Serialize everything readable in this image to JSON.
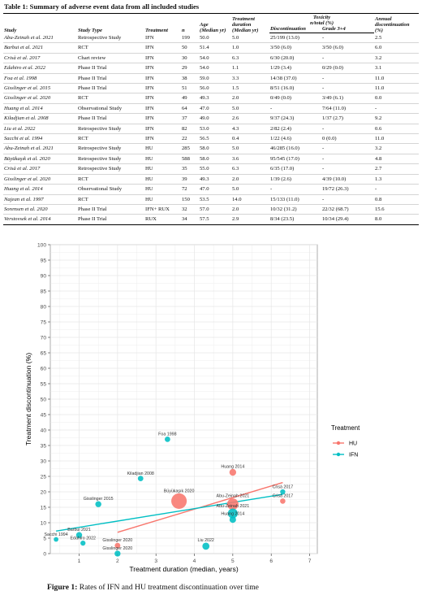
{
  "table": {
    "caption_bold": "Table 1:",
    "caption": " Summary of adverse event data from all included studies",
    "headers": {
      "study": "Study",
      "study_type": "Study Type",
      "treatment": "Treatment",
      "n": "n",
      "age": [
        "Age",
        "(Median yr)"
      ],
      "duration": [
        "Treatment",
        "duration",
        "(Median yr)"
      ],
      "toxicity": [
        "Toxicity",
        "n/total (%)"
      ],
      "discontinuation": "Discontinuation",
      "grade": "Grade 3+4",
      "annual": [
        "Annual",
        "discontinuation",
        "(%)"
      ]
    },
    "rows": [
      [
        "Abu-Zeinah et al. 2021",
        "Retrospective Study",
        "IFN",
        "199",
        "50.0",
        "5.0",
        "25/199 (13.0)",
        "-",
        "2.5"
      ],
      [
        "Barbui et al. 2021",
        "RCT",
        "IFN",
        "50",
        "51.4",
        "1.0",
        "3/50 (6.0)",
        "3/50 (6.0)",
        "6.0"
      ],
      [
        "Crisà et al. 2017",
        "Chart review",
        "IFN",
        "30",
        "54.0",
        "6.3",
        "6/30 (20.0)",
        "-",
        "3.2"
      ],
      [
        "Edahiro et al.  2022",
        "Phase II Trial",
        "IFN",
        "29",
        "54.0",
        "1.1",
        "1/29 (3.4)",
        "0/29 (0.0)",
        "3.1"
      ],
      [
        "Foa et al. 1998",
        "Phase II Trial",
        "IFN",
        "38",
        "59.0",
        "3.3",
        "14/38 (37.0)",
        "-",
        "11.0"
      ],
      [
        "Gisslinger et al. 2015",
        "Phase II Trial",
        "IFN",
        "51",
        "56.0",
        "1.5",
        "8/51 (16.0)",
        "-",
        "11.0"
      ],
      [
        "Gisslinger et al. 2020",
        "RCT",
        "IFN",
        "49",
        "49.3",
        "2.0",
        "0/49 (0.0)",
        "3/49 (6.1)",
        "0.0"
      ],
      [
        "Huang et al. 2014",
        "Observational Study",
        "IFN",
        "64",
        "47.0",
        "5.0",
        "-",
        "7/64 (11.0)",
        "-"
      ],
      [
        "Kiladjian et al. 2008",
        "Phase II Trial",
        "IFN",
        "37",
        "49.0",
        "2.6",
        "9/37 (24.3)",
        "1/37 (2.7)",
        "9.2"
      ],
      [
        "Liu et al. 2022",
        "Retrospective Study",
        "IFN",
        "82",
        "53.0",
        "4.3",
        "2/82 (2.4)",
        "-",
        "0.6"
      ],
      [
        "Sacchi et al. 1994",
        "RCT",
        "IFN",
        "22",
        "56.5",
        "0.4",
        "1/22 (4.6)",
        "0 (0.0)",
        "11.0"
      ],
      [
        "Abu-Zeinah et al. 2021",
        "Retrospective Study",
        "HU",
        "285",
        "58.0",
        "5.0",
        "46/285 (16.0)",
        "-",
        "3.2"
      ],
      [
        "Büyükaşık et al. 2020",
        "Retrospective Study",
        "HU",
        "588",
        "58.0",
        "3.6",
        "95/545 (17.0)",
        "-",
        "4.8"
      ],
      [
        "Crisà et al. 2017",
        "Retrospective Study",
        "HU",
        "35",
        "55.0",
        "6.3",
        "6/35 (17.0)",
        "-",
        "2.7"
      ],
      [
        "Gisslinger et al. 2020",
        "RCT",
        "HU",
        "39",
        "49.3",
        "2.0",
        "1/39 (2.6)",
        "4/39 (10.0)",
        "1.3"
      ],
      [
        "Huang et al. 2014",
        "Observational Study",
        "HU",
        "72",
        "47.0",
        "5.0",
        "-",
        "19/72 (26.3)",
        "-"
      ],
      [
        "Najean et al. 1997",
        "RCT",
        "HU",
        "150",
        "53.5",
        "14.0",
        "15/133 (11.0)",
        "-",
        "0.8"
      ],
      [
        "Sorensen et al. 2020",
        "Phase II Trial",
        "IFN+ RUX",
        "32",
        "57.0",
        "2.0",
        "10/32 (31.2)",
        "22/32 (68.7)",
        "15.6"
      ],
      [
        "Verstovsek et al. 2014",
        "Phase II Trial",
        "RUX",
        "34",
        "57.5",
        "2.9",
        "8/34 (23.5)",
        "10/34 (29.4)",
        "8.0"
      ]
    ]
  },
  "chart_data": {
    "type": "scatter",
    "xlabel": "Treatment duration (median, years)",
    "ylabel": "Treatment discontinuation (%)",
    "xlim": [
      0,
      7
    ],
    "ylim": [
      0,
      100
    ],
    "xticks": [
      "0",
      "1",
      "2",
      "3",
      "4",
      "5",
      "6",
      "7"
    ],
    "yticks": [
      "0",
      "5",
      "10",
      "15",
      "20",
      "25",
      "30",
      "35",
      "40",
      "45",
      "50",
      "55",
      "60",
      "65",
      "70",
      "75",
      "80",
      "85",
      "90",
      "95",
      "100"
    ],
    "grid": true,
    "legend": {
      "title": "Treatment",
      "position": "right",
      "entries": [
        "HU",
        "IFN"
      ]
    },
    "colors": {
      "HU": "#F8766D",
      "IFN": "#00BFC4"
    },
    "series": [
      {
        "name": "HU",
        "points": [
          {
            "label": "Büyükaşık 2020",
            "x": 3.6,
            "y": 17.0,
            "n": 588
          },
          {
            "label": "Abu-Zeinah 2021",
            "x": 5.0,
            "y": 16.0,
            "n": 285
          },
          {
            "label": "Crisà 2017",
            "x": 6.3,
            "y": 17.0,
            "n": 35
          },
          {
            "label": "Gisslinger 2020",
            "x": 2.0,
            "y": 2.6,
            "n": 39
          },
          {
            "label": "Huang 2014",
            "x": 5.0,
            "y": 26.3,
            "n": 72
          }
        ],
        "fit": [
          [
            2.0,
            6.9
          ],
          [
            6.3,
            23.0
          ]
        ]
      },
      {
        "name": "IFN",
        "points": [
          {
            "label": "Abu-Zeinah 2021",
            "x": 5.0,
            "y": 13.0,
            "n": 199
          },
          {
            "label": "Barbui 2021",
            "x": 1.0,
            "y": 6.0,
            "n": 50
          },
          {
            "label": "Crisà 2017",
            "x": 6.3,
            "y": 20.0,
            "n": 30
          },
          {
            "label": "Edahiro 2022",
            "x": 1.1,
            "y": 3.4,
            "n": 29
          },
          {
            "label": "Foa 1998",
            "x": 3.3,
            "y": 37.0,
            "n": 38
          },
          {
            "label": "Gisslinger 2015",
            "x": 1.5,
            "y": 16.0,
            "n": 51
          },
          {
            "label": "Gisslinger 2020",
            "x": 2.0,
            "y": 0.0,
            "n": 49
          },
          {
            "label": "Huang 2014",
            "x": 5.0,
            "y": 11.0,
            "n": 64
          },
          {
            "label": "Kiladjian 2008",
            "x": 2.6,
            "y": 24.3,
            "n": 37
          },
          {
            "label": "Liu 2022",
            "x": 4.3,
            "y": 2.4,
            "n": 82
          },
          {
            "label": "Sacchi 1994",
            "x": 0.4,
            "y": 4.6,
            "n": 22
          }
        ],
        "fit": [
          [
            0.4,
            7.3
          ],
          [
            6.3,
            19.2
          ]
        ]
      }
    ]
  },
  "figure": {
    "caption_bold": "Figure 1:",
    "caption": " Rates of IFN and HU treatment discontinuation over time"
  }
}
